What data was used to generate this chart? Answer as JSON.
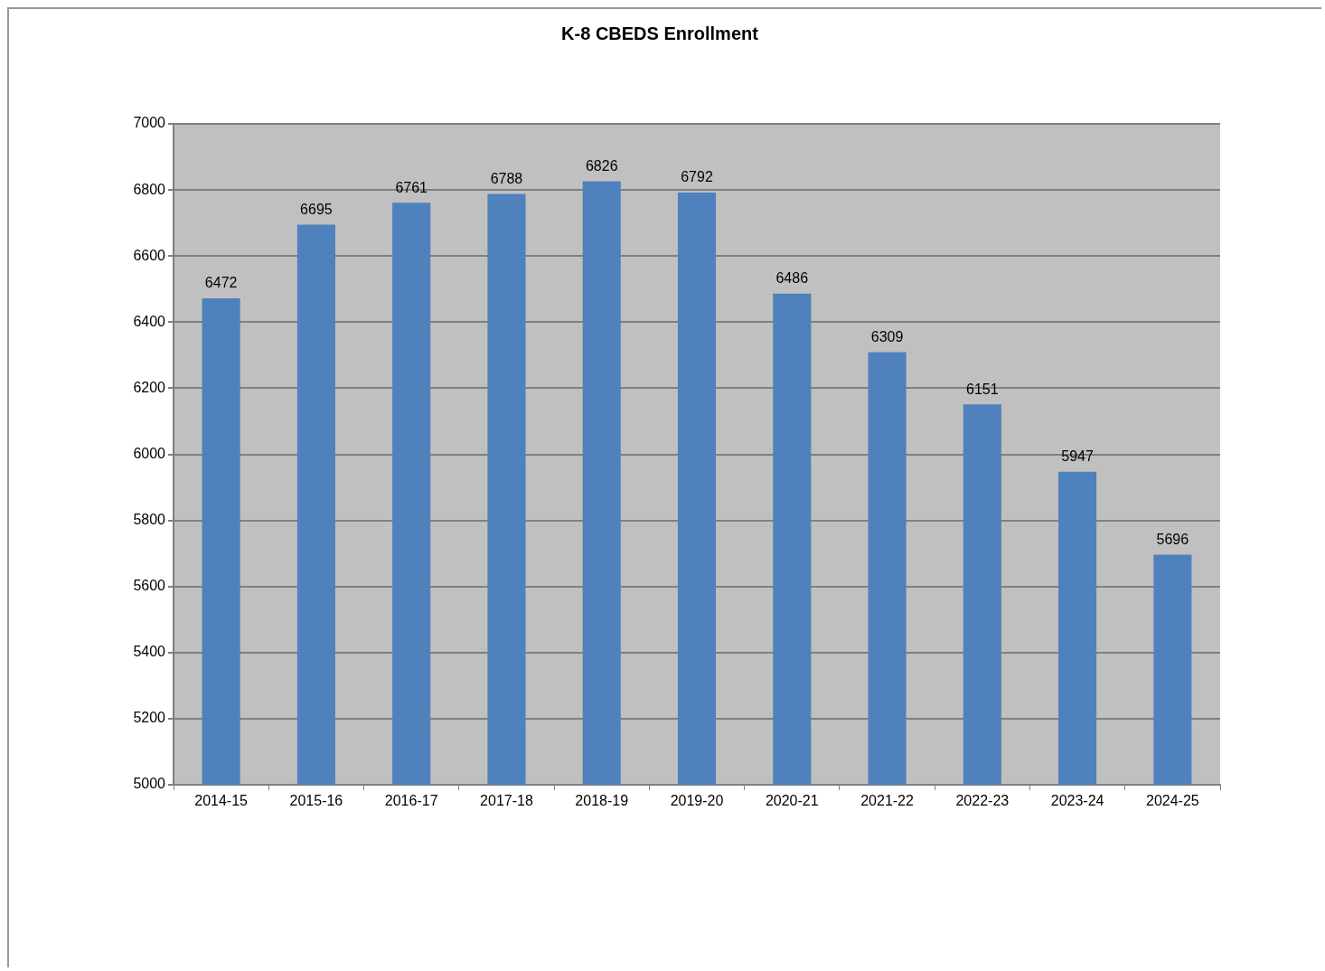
{
  "chart_data": {
    "type": "bar",
    "title": "K-8 CBEDS Enrollment",
    "categories": [
      "2014-15",
      "2015-16",
      "2016-17",
      "2017-18",
      "2018-19",
      "2019-20",
      "2020-21",
      "2021-22",
      "2022-23",
      "2023-24",
      "2024-25"
    ],
    "values": [
      6472,
      6695,
      6761,
      6788,
      6826,
      6792,
      6486,
      6309,
      6151,
      5947,
      5696
    ],
    "color": "#4f81bd",
    "ylim": [
      5000,
      7000
    ],
    "yticks": [
      5000,
      5200,
      5400,
      5600,
      5800,
      6000,
      6200,
      6400,
      6600,
      6800,
      7000
    ],
    "grid": "y",
    "data_labels": true,
    "legend": false
  }
}
